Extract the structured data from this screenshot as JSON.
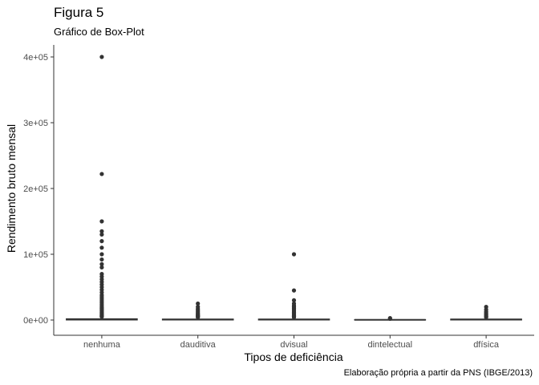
{
  "chart_data": {
    "type": "box",
    "title": "Figura 5",
    "subtitle": "Gráfico de Box-Plot",
    "caption": "Elaboração própria a partir da PNS (IBGE/2013)",
    "xlabel": "Tipos de deficiência",
    "ylabel": "Rendimento bruto mensal",
    "categories": [
      "nenhuma",
      "dauditiva",
      "dvisual",
      "dintelectual",
      "dfísica"
    ],
    "y_ticks": [
      0,
      100000,
      200000,
      300000,
      400000
    ],
    "y_tick_labels": [
      "0e+00",
      "1e+05",
      "2e+05",
      "3e+05",
      "4e+05"
    ],
    "ylim": [
      -15000,
      420000
    ],
    "grid": false,
    "boxes": [
      {
        "category": "nenhuma",
        "q1": 0,
        "median": 800,
        "q3": 2000,
        "whisker_low": 0,
        "whisker_high": 4000,
        "outliers": [
          400000,
          222000,
          150000,
          135000,
          130000,
          120000,
          110000,
          100000,
          92000,
          85000,
          80000,
          70000,
          66000,
          62000,
          58000,
          54000,
          50000,
          46000,
          42000,
          38000,
          35000,
          32000,
          29000,
          26000,
          23000,
          20000,
          18000,
          16000,
          14000,
          12000,
          10000,
          8500,
          7000,
          6000,
          5000
        ]
      },
      {
        "category": "dauditiva",
        "q1": 0,
        "median": 700,
        "q3": 1500,
        "whisker_low": 0,
        "whisker_high": 3000,
        "outliers": [
          25000,
          20000,
          17000,
          15000,
          13000,
          11000,
          9500,
          8000,
          7000,
          6000,
          5000,
          4000
        ]
      },
      {
        "category": "dvisual",
        "q1": 0,
        "median": 700,
        "q3": 1500,
        "whisker_low": 0,
        "whisker_high": 3000,
        "outliers": [
          100000,
          45000,
          30000,
          25000,
          22000,
          20000,
          18000,
          16000,
          14000,
          12000,
          10000,
          8500,
          7000,
          6000,
          5000,
          4000
        ]
      },
      {
        "category": "dintelectual",
        "q1": 0,
        "median": 300,
        "q3": 700,
        "whisker_low": 0,
        "whisker_high": 1200,
        "outliers": [
          3000,
          2000
        ]
      },
      {
        "category": "dfísica",
        "q1": 0,
        "median": 700,
        "q3": 1500,
        "whisker_low": 0,
        "whisker_high": 3000,
        "outliers": [
          20000,
          16000,
          13000,
          11000,
          9000,
          7500,
          6000,
          5000,
          4000
        ]
      }
    ]
  }
}
